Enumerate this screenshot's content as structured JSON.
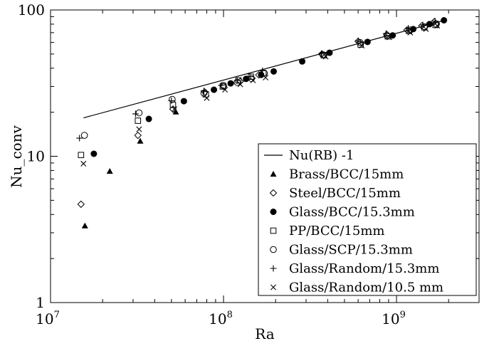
{
  "chart_data": {
    "type": "scatter",
    "xlabel": "Ra",
    "ylabel": "Nu_conv",
    "x_scale": "log",
    "y_scale": "log",
    "xlim": [
      10000000.0,
      3000000000.0
    ],
    "ylim": [
      1,
      100
    ],
    "x_ticks": [
      {
        "value": 10000000.0,
        "base": "10",
        "exp": "7"
      },
      {
        "value": 100000000.0,
        "base": "10",
        "exp": "8"
      },
      {
        "value": 1000000000.0,
        "base": "10",
        "exp": "9"
      }
    ],
    "y_ticks": [
      {
        "value": 1,
        "label": "1"
      },
      {
        "value": 10,
        "label": "10"
      },
      {
        "value": 100,
        "label": "100"
      }
    ],
    "legend_position": "bottom-right",
    "line": {
      "name": "Nu(RB) -1",
      "x": [
        15500000.0,
        1900000000.0
      ],
      "y": [
        18.3,
        85
      ]
    },
    "series": [
      {
        "name": "Brass/BCC/15mm",
        "marker": "triangle-filled",
        "x": [
          15800000.0,
          22000000.0,
          33000000.0,
          53000000.0
        ],
        "y": [
          3.35,
          7.9,
          12.7,
          20.1
        ]
      },
      {
        "name": "Steel/BCC/15mm",
        "marker": "diamond-open",
        "x": [
          15000000.0,
          32000000.0,
          51000000.0,
          78000000.0,
          100000000.0,
          125000000.0,
          160000000.0,
          370000000.0,
          600000000.0,
          880000000.0,
          1150000000.0,
          1400000000.0,
          1650000000.0
        ],
        "y": [
          4.7,
          13.9,
          21.0,
          27.5,
          30.0,
          32.5,
          36.0,
          50.0,
          61.0,
          68.0,
          73.0,
          78.0,
          83.0
        ]
      },
      {
        "name": "Glass/BCC/15.3mm",
        "marker": "circle-filled",
        "x": [
          17800000.0,
          37000000.0,
          59000000.0,
          88000000.0,
          110000000.0,
          135000000.0,
          165000000.0,
          195000000.0,
          285000000.0,
          410000000.0,
          680000000.0,
          950000000.0,
          1250000000.0,
          1550000000.0,
          1880000000.0
        ],
        "y": [
          10.4,
          18.0,
          23.8,
          28.5,
          31.5,
          33.8,
          36.0,
          38.0,
          44.5,
          51.0,
          60.5,
          67.0,
          74.0,
          80.0,
          85.0
        ]
      },
      {
        "name": "PP/BCC/15mm",
        "marker": "square-open",
        "x": [
          15000000.0,
          32000000.0,
          51000000.0,
          79000000.0,
          99000000.0,
          122000000.0,
          144000000.0,
          170000000.0,
          380000000.0,
          620000000.0,
          890000000.0,
          1180000000.0,
          1450000000.0,
          1680000000.0
        ],
        "y": [
          10.2,
          17.5,
          22.5,
          26.5,
          30.0,
          33.0,
          35.0,
          37.0,
          49.0,
          58.0,
          66.0,
          72.0,
          76.0,
          79.0
        ]
      },
      {
        "name": "Glass/SCP/15.3mm",
        "marker": "circle-open",
        "x": [
          15700000.0,
          32500000.0,
          50500000.0,
          77000000.0,
          100000000.0,
          120000000.0,
          145000000.0,
          172000000.0,
          375000000.0,
          615000000.0,
          880000000.0,
          1200000000.0,
          1450000000.0,
          1700000000.0
        ],
        "y": [
          13.9,
          19.8,
          24.5,
          27.0,
          30.5,
          32.0,
          34.0,
          37.0,
          49.5,
          60.0,
          67.0,
          73.0,
          77.0,
          80.0
        ]
      },
      {
        "name": "Glass/Random/15.3mm",
        "marker": "plus",
        "x": [
          14700000.0,
          31000000.0,
          50000000.0,
          77000000.0,
          97000000.0,
          120000000.0,
          142000000.0,
          168000000.0,
          370000000.0,
          600000000.0,
          870000000.0,
          1170000000.0,
          1420000000.0,
          1670000000.0
        ],
        "y": [
          13.3,
          19.5,
          24.0,
          28.0,
          30.5,
          33.0,
          35.0,
          38.5,
          50.5,
          61.5,
          69.0,
          75.0,
          79.0,
          84.0
        ]
      },
      {
        "name": "Glass/Random/10.5 mm",
        "marker": "cross",
        "x": [
          15500000.0,
          32500000.0,
          52000000.0,
          80000000.0,
          102000000.0,
          125000000.0,
          148000000.0,
          175000000.0,
          390000000.0,
          630000000.0,
          910000000.0,
          1200000000.0,
          1480000000.0,
          1720000000.0
        ],
        "y": [
          8.9,
          15.3,
          21.0,
          25.0,
          28.5,
          31.0,
          33.0,
          34.5,
          48.0,
          57.0,
          65.0,
          70.0,
          74.0,
          78.0
        ]
      }
    ]
  }
}
